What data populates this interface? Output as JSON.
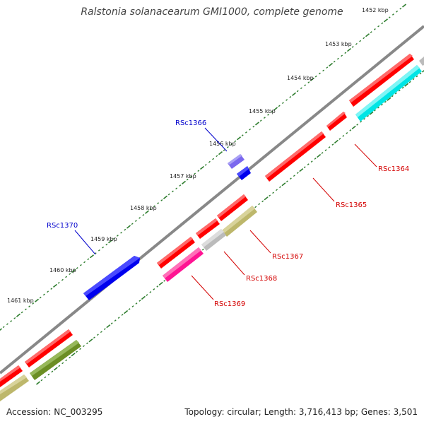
{
  "title": "Ralstonia solanacearum GMI1000, complete genome",
  "footer": {
    "accession": "Accession: NC_003295",
    "summary": "Topology: circular; Length: 3,716,413 bp; Genes: 3,501"
  },
  "ruler_labels": [
    "1452 kbp",
    "1453 kbp",
    "1454 kbp",
    "1455 kbp",
    "1456 kbp",
    "1457 kbp",
    "1458 kbp",
    "1459 kbp",
    "1460 kbp",
    "1461 kbp"
  ],
  "gene_labels": [
    {
      "id": "RSc1364",
      "color": "#d40000"
    },
    {
      "id": "RSc1365",
      "color": "#d40000"
    },
    {
      "id": "RSc1366",
      "color": "#0000cc"
    },
    {
      "id": "RSc1367",
      "color": "#d40000"
    },
    {
      "id": "RSc1368",
      "color": "#d40000"
    },
    {
      "id": "RSc1369",
      "color": "#d40000"
    },
    {
      "id": "RSc1370",
      "color": "#0000cc"
    }
  ],
  "colors": {
    "backbone": "#888888",
    "ticks": "#2e7d2e",
    "red_gene": "#ff0000",
    "blue_gene": "#0000ee",
    "cyan_gene": "#00e5e5",
    "khaki_gene": "#bdb76b",
    "olive_gene": "#6b8e23",
    "magenta_gene": "#ff1493",
    "grey_gene": "#bbbbbb",
    "lavender_gene": "#7b68ee"
  }
}
